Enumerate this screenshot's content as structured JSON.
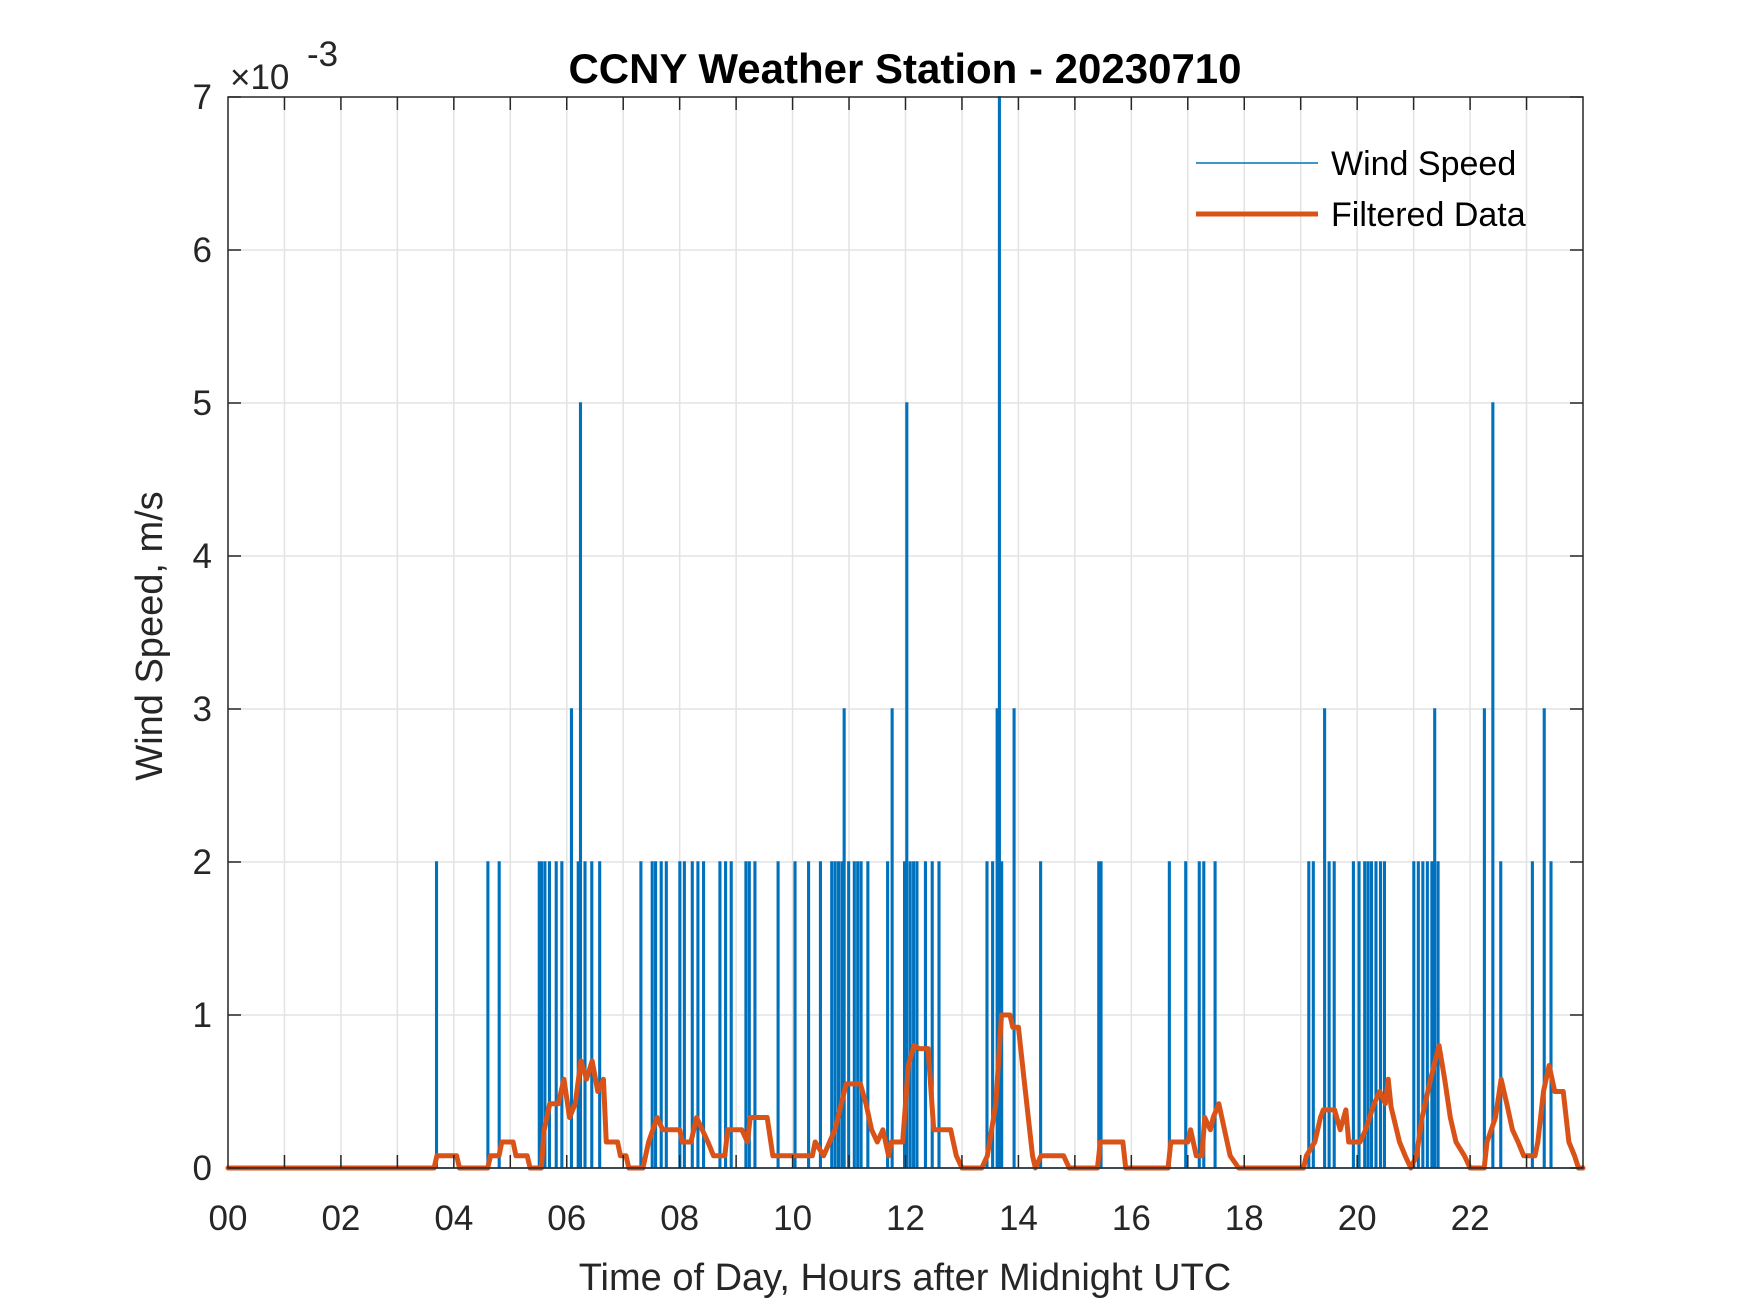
{
  "chart_data": {
    "type": "line",
    "title": "CCNY Weather Station - 20230710",
    "xlabel": "Time of Day, Hours after Midnight UTC",
    "ylabel": "Wind Speed, m/s",
    "y_exponent_label": "×10",
    "y_exponent_power": "-3",
    "xlim": [
      0,
      24
    ],
    "ylim": [
      0,
      7
    ],
    "y_scale": 0.001,
    "grid": true,
    "legend_position": "top-right",
    "x_ticks": [
      0,
      2,
      4,
      6,
      8,
      10,
      12,
      14,
      16,
      18,
      20,
      22
    ],
    "x_tick_labels": [
      "00",
      "02",
      "04",
      "06",
      "08",
      "10",
      "12",
      "14",
      "16",
      "18",
      "20",
      "22"
    ],
    "y_ticks": [
      0,
      1,
      2,
      3,
      4,
      5,
      6,
      7
    ],
    "y_tick_labels": [
      "0",
      "1",
      "2",
      "3",
      "4",
      "5",
      "6",
      "7"
    ],
    "series": [
      {
        "name": "Wind Speed",
        "color": "#0072BD",
        "baseline": 0,
        "spikes_hour_value": [
          [
            3.68,
            2
          ],
          [
            4.59,
            2
          ],
          [
            4.79,
            2
          ],
          [
            5.5,
            2
          ],
          [
            5.54,
            2
          ],
          [
            5.6,
            2
          ],
          [
            5.68,
            2
          ],
          [
            5.8,
            2
          ],
          [
            5.9,
            2
          ],
          [
            6.07,
            3
          ],
          [
            6.19,
            2
          ],
          [
            6.23,
            5
          ],
          [
            6.31,
            2
          ],
          [
            6.43,
            2
          ],
          [
            6.57,
            2
          ],
          [
            7.3,
            2
          ],
          [
            7.5,
            2
          ],
          [
            7.56,
            2
          ],
          [
            7.66,
            2
          ],
          [
            7.75,
            2
          ],
          [
            7.99,
            2
          ],
          [
            8.07,
            2
          ],
          [
            8.21,
            2
          ],
          [
            8.31,
            2
          ],
          [
            8.41,
            2
          ],
          [
            8.7,
            2
          ],
          [
            8.8,
            2
          ],
          [
            8.9,
            2
          ],
          [
            9.16,
            2
          ],
          [
            9.22,
            2
          ],
          [
            9.32,
            2
          ],
          [
            9.73,
            2
          ],
          [
            10.03,
            2
          ],
          [
            10.27,
            2
          ],
          [
            10.48,
            2
          ],
          [
            10.68,
            2
          ],
          [
            10.74,
            2
          ],
          [
            10.8,
            2
          ],
          [
            10.86,
            2
          ],
          [
            10.9,
            3
          ],
          [
            10.98,
            2
          ],
          [
            11.08,
            2
          ],
          [
            11.14,
            2
          ],
          [
            11.2,
            2
          ],
          [
            11.32,
            2
          ],
          [
            11.67,
            2
          ],
          [
            11.75,
            3
          ],
          [
            11.97,
            2
          ],
          [
            12.01,
            5
          ],
          [
            12.07,
            2
          ],
          [
            12.13,
            2
          ],
          [
            12.19,
            2
          ],
          [
            12.34,
            2
          ],
          [
            12.46,
            2
          ],
          [
            12.58,
            2
          ],
          [
            13.43,
            2
          ],
          [
            13.53,
            2
          ],
          [
            13.61,
            3
          ],
          [
            13.65,
            7
          ],
          [
            13.69,
            2
          ],
          [
            13.91,
            3
          ],
          [
            14.38,
            2
          ],
          [
            15.41,
            2
          ],
          [
            15.45,
            2
          ],
          [
            16.66,
            2
          ],
          [
            16.95,
            2
          ],
          [
            17.19,
            2
          ],
          [
            17.27,
            2
          ],
          [
            17.47,
            2
          ],
          [
            19.13,
            2
          ],
          [
            19.21,
            2
          ],
          [
            19.41,
            3
          ],
          [
            19.49,
            2
          ],
          [
            19.58,
            2
          ],
          [
            19.92,
            2
          ],
          [
            20.02,
            2
          ],
          [
            20.12,
            2
          ],
          [
            20.18,
            2
          ],
          [
            20.24,
            2
          ],
          [
            20.32,
            2
          ],
          [
            20.4,
            2
          ],
          [
            20.47,
            2
          ],
          [
            20.99,
            2
          ],
          [
            21.07,
            2
          ],
          [
            21.15,
            2
          ],
          [
            21.23,
            2
          ],
          [
            21.31,
            2
          ],
          [
            21.36,
            3
          ],
          [
            21.42,
            2
          ],
          [
            22.24,
            3
          ],
          [
            22.39,
            5
          ],
          [
            22.53,
            2
          ],
          [
            23.09,
            2
          ],
          [
            23.3,
            3
          ],
          [
            23.42,
            2
          ]
        ]
      },
      {
        "name": "Filtered Data",
        "color": "#D95319",
        "points_hour_value": [
          [
            0,
            0
          ],
          [
            3.65,
            0
          ],
          [
            3.7,
            0.08
          ],
          [
            4.05,
            0.08
          ],
          [
            4.1,
            0
          ],
          [
            4.6,
            0
          ],
          [
            4.65,
            0.08
          ],
          [
            4.8,
            0.08
          ],
          [
            4.85,
            0.17
          ],
          [
            5.05,
            0.17
          ],
          [
            5.1,
            0.08
          ],
          [
            5.3,
            0.08
          ],
          [
            5.35,
            0
          ],
          [
            5.55,
            0
          ],
          [
            5.6,
            0.25
          ],
          [
            5.7,
            0.42
          ],
          [
            5.85,
            0.42
          ],
          [
            5.95,
            0.58
          ],
          [
            6.05,
            0.33
          ],
          [
            6.15,
            0.42
          ],
          [
            6.25,
            0.7
          ],
          [
            6.35,
            0.58
          ],
          [
            6.45,
            0.7
          ],
          [
            6.55,
            0.5
          ],
          [
            6.65,
            0.58
          ],
          [
            6.7,
            0.17
          ],
          [
            6.9,
            0.17
          ],
          [
            6.95,
            0.08
          ],
          [
            7.05,
            0.08
          ],
          [
            7.1,
            0
          ],
          [
            7.35,
            0
          ],
          [
            7.45,
            0.17
          ],
          [
            7.6,
            0.33
          ],
          [
            7.7,
            0.25
          ],
          [
            8.0,
            0.25
          ],
          [
            8.05,
            0.17
          ],
          [
            8.2,
            0.17
          ],
          [
            8.3,
            0.33
          ],
          [
            8.4,
            0.25
          ],
          [
            8.5,
            0.17
          ],
          [
            8.6,
            0.08
          ],
          [
            8.8,
            0.08
          ],
          [
            8.85,
            0.25
          ],
          [
            9.1,
            0.25
          ],
          [
            9.2,
            0.17
          ],
          [
            9.25,
            0.33
          ],
          [
            9.55,
            0.33
          ],
          [
            9.65,
            0.08
          ],
          [
            10.35,
            0.08
          ],
          [
            10.4,
            0.17
          ],
          [
            10.55,
            0.08
          ],
          [
            10.75,
            0.25
          ],
          [
            10.95,
            0.55
          ],
          [
            11.2,
            0.55
          ],
          [
            11.3,
            0.42
          ],
          [
            11.4,
            0.25
          ],
          [
            11.5,
            0.17
          ],
          [
            11.6,
            0.25
          ],
          [
            11.7,
            0.08
          ],
          [
            11.75,
            0.17
          ],
          [
            11.95,
            0.17
          ],
          [
            12.05,
            0.67
          ],
          [
            12.15,
            0.8
          ],
          [
            12.25,
            0.78
          ],
          [
            12.4,
            0.78
          ],
          [
            12.5,
            0.25
          ],
          [
            12.8,
            0.25
          ],
          [
            12.9,
            0.08
          ],
          [
            13.0,
            0
          ],
          [
            13.35,
            0
          ],
          [
            13.45,
            0.08
          ],
          [
            13.6,
            0.42
          ],
          [
            13.7,
            1.0
          ],
          [
            13.85,
            1.0
          ],
          [
            13.9,
            0.92
          ],
          [
            14.0,
            0.92
          ],
          [
            14.1,
            0.58
          ],
          [
            14.25,
            0.08
          ],
          [
            14.3,
            0
          ],
          [
            14.4,
            0.08
          ],
          [
            14.8,
            0.08
          ],
          [
            14.9,
            0
          ],
          [
            15.4,
            0
          ],
          [
            15.45,
            0.17
          ],
          [
            15.85,
            0.17
          ],
          [
            15.9,
            0
          ],
          [
            16.65,
            0
          ],
          [
            16.7,
            0.17
          ],
          [
            17.0,
            0.17
          ],
          [
            17.05,
            0.25
          ],
          [
            17.15,
            0.08
          ],
          [
            17.25,
            0.08
          ],
          [
            17.3,
            0.33
          ],
          [
            17.4,
            0.25
          ],
          [
            17.45,
            0.33
          ],
          [
            17.55,
            0.42
          ],
          [
            17.65,
            0.25
          ],
          [
            17.75,
            0.08
          ],
          [
            17.9,
            0
          ],
          [
            19.05,
            0
          ],
          [
            19.1,
            0.08
          ],
          [
            19.25,
            0.17
          ],
          [
            19.35,
            0.33
          ],
          [
            19.4,
            0.38
          ],
          [
            19.6,
            0.38
          ],
          [
            19.7,
            0.25
          ],
          [
            19.8,
            0.38
          ],
          [
            19.85,
            0.17
          ],
          [
            20.05,
            0.17
          ],
          [
            20.15,
            0.25
          ],
          [
            20.3,
            0.42
          ],
          [
            20.4,
            0.5
          ],
          [
            20.5,
            0.42
          ],
          [
            20.55,
            0.58
          ],
          [
            20.6,
            0.4
          ],
          [
            20.75,
            0.17
          ],
          [
            20.85,
            0.08
          ],
          [
            20.95,
            0
          ],
          [
            21.05,
            0.08
          ],
          [
            21.15,
            0.33
          ],
          [
            21.3,
            0.58
          ],
          [
            21.45,
            0.8
          ],
          [
            21.55,
            0.58
          ],
          [
            21.65,
            0.33
          ],
          [
            21.75,
            0.17
          ],
          [
            21.9,
            0.08
          ],
          [
            22.0,
            0
          ],
          [
            22.25,
            0
          ],
          [
            22.3,
            0.17
          ],
          [
            22.45,
            0.33
          ],
          [
            22.55,
            0.58
          ],
          [
            22.65,
            0.42
          ],
          [
            22.75,
            0.25
          ],
          [
            22.85,
            0.17
          ],
          [
            22.95,
            0.08
          ],
          [
            23.15,
            0.08
          ],
          [
            23.2,
            0.17
          ],
          [
            23.3,
            0.5
          ],
          [
            23.4,
            0.67
          ],
          [
            23.5,
            0.5
          ],
          [
            23.65,
            0.5
          ],
          [
            23.75,
            0.17
          ],
          [
            23.85,
            0.08
          ],
          [
            23.92,
            0
          ],
          [
            24,
            0
          ]
        ]
      }
    ]
  }
}
